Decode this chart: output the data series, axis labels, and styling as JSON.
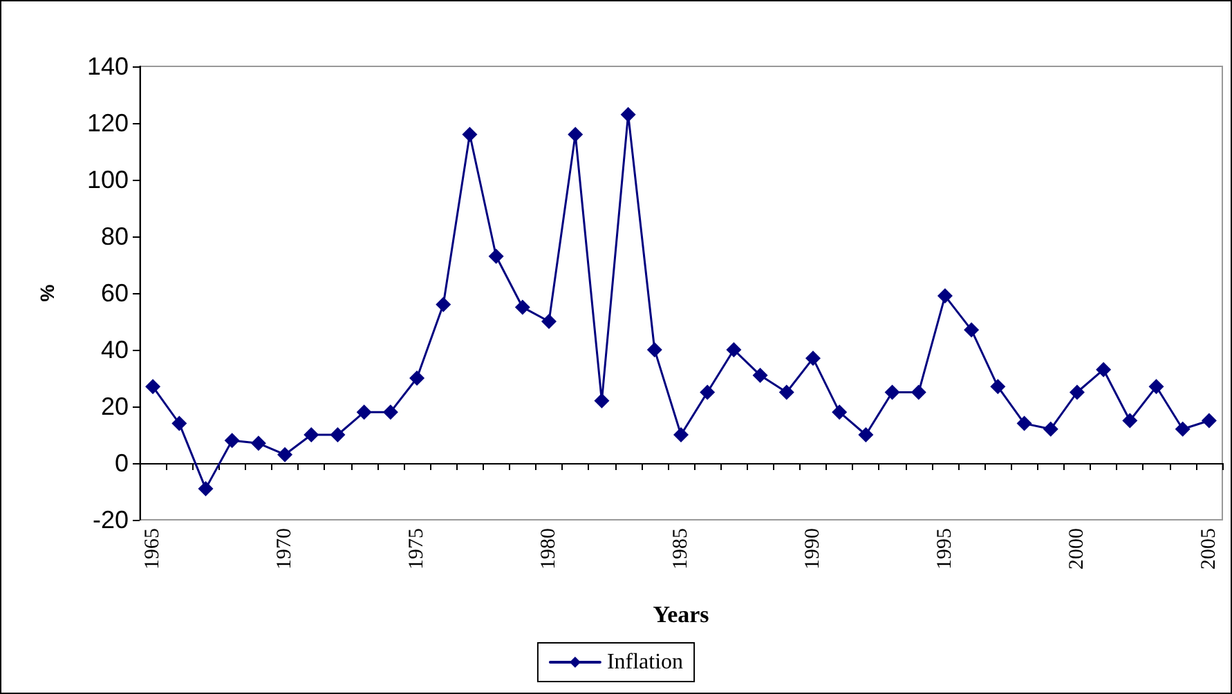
{
  "chart_data": {
    "type": "line",
    "xlabel": "Years",
    "ylabel": "%",
    "categories": [
      "1965",
      null,
      null,
      null,
      null,
      "1970",
      null,
      null,
      null,
      null,
      "1975",
      null,
      null,
      null,
      null,
      "1980",
      null,
      null,
      null,
      null,
      "1985",
      null,
      null,
      null,
      null,
      "1990",
      null,
      null,
      null,
      null,
      "1995",
      null,
      null,
      null,
      null,
      "2000",
      null,
      null,
      null,
      null,
      "2005"
    ],
    "series": [
      {
        "name": "Inflation",
        "color": "#000080",
        "values": [
          27,
          14,
          -9,
          8,
          7,
          3,
          10,
          10,
          18,
          18,
          30,
          56,
          116,
          73,
          55,
          50,
          116,
          22,
          123,
          40,
          10,
          25,
          40,
          31,
          25,
          37,
          18,
          10,
          25,
          25,
          59,
          47,
          27,
          14,
          12,
          25,
          33,
          15,
          27,
          12,
          15
        ]
      }
    ],
    "ylim": [
      -20,
      140
    ],
    "yticks": [
      -20,
      0,
      20,
      40,
      60,
      80,
      100,
      120,
      140
    ],
    "legend": "bottom",
    "marker": "diamond",
    "line_style": "solid"
  }
}
